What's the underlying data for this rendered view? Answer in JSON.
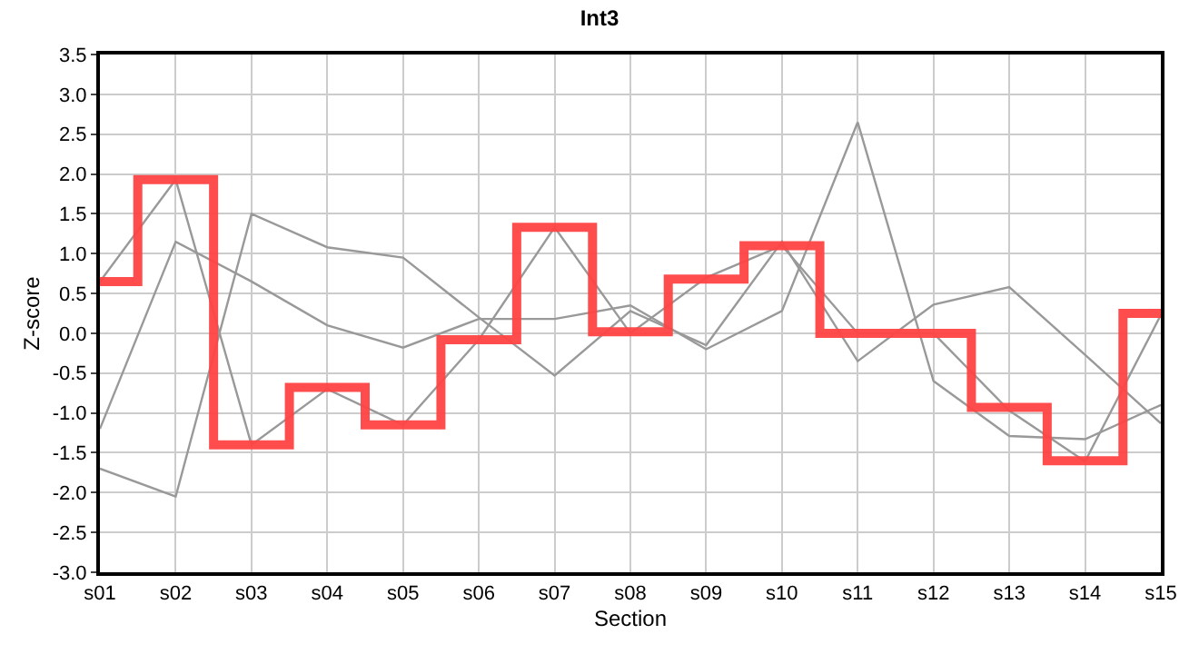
{
  "chart_data": {
    "type": "line",
    "title": "Int3",
    "xlabel": "Section",
    "ylabel": "Z-score",
    "categories": [
      "s01",
      "s02",
      "s03",
      "s04",
      "s05",
      "s06",
      "s07",
      "s08",
      "s09",
      "s10",
      "s11",
      "s12",
      "s13",
      "s14",
      "s15"
    ],
    "series": [
      {
        "color": "#999999",
        "values": [
          0.65,
          1.93,
          -1.4,
          -0.7,
          -1.15,
          -0.08,
          1.33,
          0.0,
          0.7,
          1.1,
          0.0,
          0.0,
          -0.97,
          -1.61,
          0.23
        ]
      },
      {
        "color": "#999999",
        "values": [
          -1.7,
          -2.05,
          1.5,
          1.08,
          0.95,
          0.2,
          -0.53,
          0.28,
          -0.15,
          1.15,
          -0.35,
          0.36,
          0.58,
          -0.27,
          -1.13
        ]
      },
      {
        "color": "#999999",
        "values": [
          -1.2,
          1.15,
          0.65,
          0.1,
          -0.18,
          0.18,
          0.18,
          0.35,
          -0.2,
          0.28,
          2.65,
          -0.6,
          -1.29,
          -1.33,
          -0.9
        ]
      },
      {
        "type": "step",
        "color": "#ff4444",
        "values": [
          0.65,
          1.93,
          -1.4,
          -0.68,
          -1.15,
          -0.08,
          1.33,
          0.02,
          0.68,
          1.1,
          0.0,
          0.0,
          -0.93,
          -1.6,
          0.25
        ]
      }
    ],
    "ylim": [
      -3.0,
      3.5
    ],
    "yticks": [
      {
        "value": -3,
        "label": "-3.0"
      },
      -2.5,
      {
        "value": -2,
        "label": "-2.0"
      },
      -1.5,
      {
        "value": -1,
        "label": "-1.0"
      },
      -0.5,
      {
        "value": 0,
        "label": "0.0"
      },
      0.5,
      {
        "value": 1,
        "label": "1.0"
      },
      1.5,
      {
        "value": 2,
        "label": "2.0"
      },
      2.5,
      {
        "value": 3,
        "label": "3.0"
      },
      3.5
    ],
    "grid": true,
    "marker": "none",
    "line_style": "solid"
  }
}
